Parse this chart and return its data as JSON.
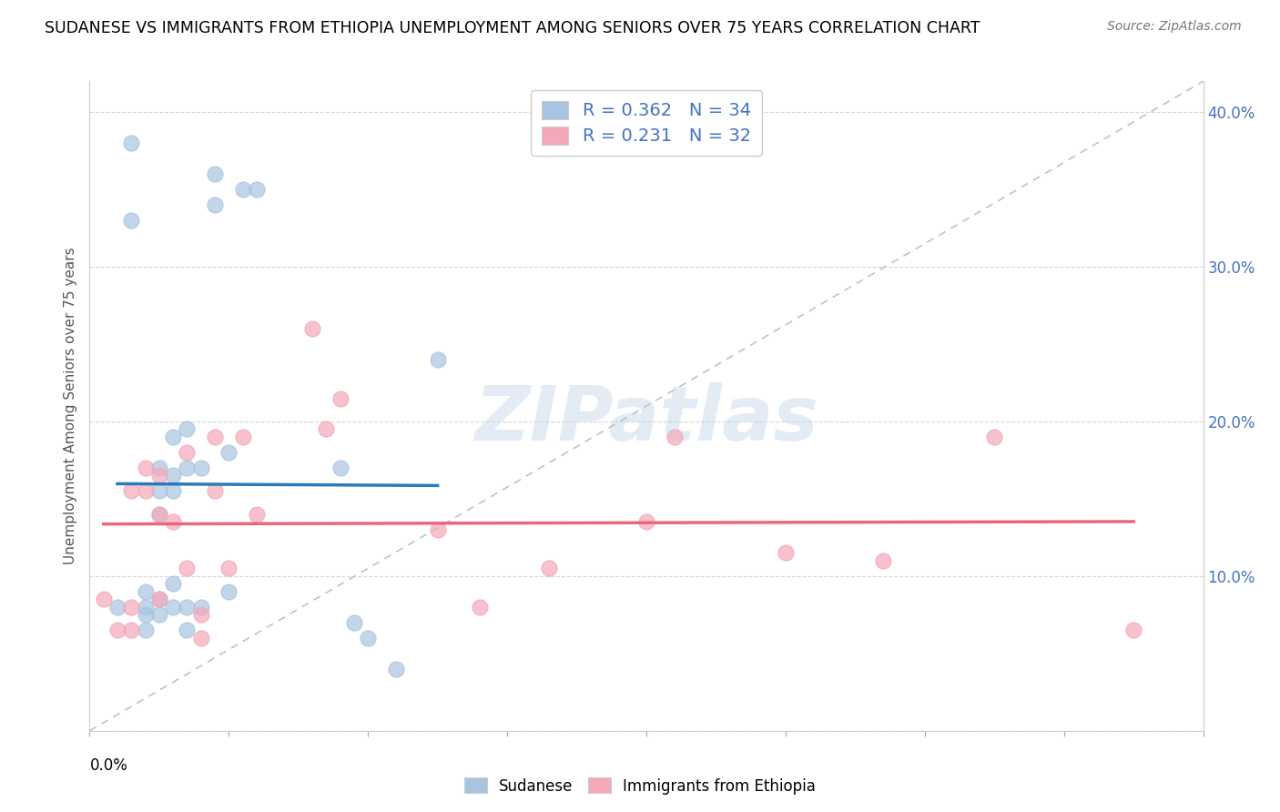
{
  "title": "SUDANESE VS IMMIGRANTS FROM ETHIOPIA UNEMPLOYMENT AMONG SENIORS OVER 75 YEARS CORRELATION CHART",
  "source": "Source: ZipAtlas.com",
  "ylabel": "Unemployment Among Seniors over 75 years",
  "xlim": [
    0.0,
    0.08
  ],
  "ylim": [
    0.0,
    0.42
  ],
  "legend1_r": "0.362",
  "legend1_n": "34",
  "legend2_r": "0.231",
  "legend2_n": "32",
  "sudanese_color": "#a8c4e0",
  "ethiopia_color": "#f4a8b8",
  "trendline_blue_color": "#2b7bba",
  "trendline_pink_color": "#e8687a",
  "diagonal_color": "#b8c4d0",
  "watermark": "ZIPatlas",
  "right_tick_color": "#4472c4",
  "sudanese_x": [
    0.002,
    0.003,
    0.003,
    0.004,
    0.004,
    0.004,
    0.004,
    0.005,
    0.005,
    0.005,
    0.005,
    0.005,
    0.006,
    0.006,
    0.006,
    0.006,
    0.006,
    0.007,
    0.007,
    0.007,
    0.007,
    0.008,
    0.008,
    0.009,
    0.009,
    0.01,
    0.01,
    0.011,
    0.012,
    0.018,
    0.019,
    0.02,
    0.022,
    0.025
  ],
  "sudanese_y": [
    0.08,
    0.38,
    0.33,
    0.09,
    0.08,
    0.075,
    0.065,
    0.17,
    0.155,
    0.14,
    0.085,
    0.075,
    0.19,
    0.165,
    0.155,
    0.095,
    0.08,
    0.195,
    0.17,
    0.08,
    0.065,
    0.17,
    0.08,
    0.36,
    0.34,
    0.18,
    0.09,
    0.35,
    0.35,
    0.17,
    0.07,
    0.06,
    0.04,
    0.24
  ],
  "ethiopia_x": [
    0.001,
    0.002,
    0.003,
    0.003,
    0.003,
    0.004,
    0.004,
    0.005,
    0.005,
    0.005,
    0.006,
    0.007,
    0.007,
    0.008,
    0.008,
    0.009,
    0.009,
    0.01,
    0.011,
    0.012,
    0.016,
    0.017,
    0.018,
    0.025,
    0.028,
    0.033,
    0.04,
    0.042,
    0.05,
    0.057,
    0.065,
    0.075
  ],
  "ethiopia_y": [
    0.085,
    0.065,
    0.155,
    0.08,
    0.065,
    0.17,
    0.155,
    0.165,
    0.14,
    0.085,
    0.135,
    0.18,
    0.105,
    0.075,
    0.06,
    0.19,
    0.155,
    0.105,
    0.19,
    0.14,
    0.26,
    0.195,
    0.215,
    0.13,
    0.08,
    0.105,
    0.135,
    0.19,
    0.115,
    0.11,
    0.19,
    0.065
  ]
}
